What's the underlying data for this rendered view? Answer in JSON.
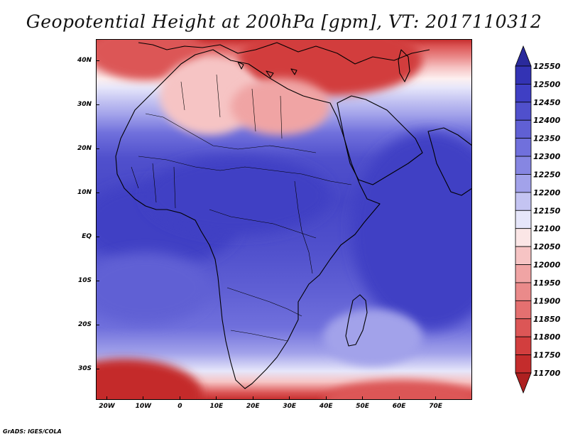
{
  "title": "Geopotential Height at 200hPa [gpm], VT: 2017110312",
  "credit": "GrADS: IGES/COLA",
  "map": {
    "lon_range": [
      -23,
      80
    ],
    "lat_range": [
      -37,
      45
    ],
    "lon_ticks": [
      {
        "value": -20,
        "label": "20W"
      },
      {
        "value": -10,
        "label": "10W"
      },
      {
        "value": 0,
        "label": "0"
      },
      {
        "value": 10,
        "label": "10E"
      },
      {
        "value": 20,
        "label": "20E"
      },
      {
        "value": 30,
        "label": "30E"
      },
      {
        "value": 40,
        "label": "40E"
      },
      {
        "value": 50,
        "label": "50E"
      },
      {
        "value": 60,
        "label": "60E"
      },
      {
        "value": 70,
        "label": "70E"
      }
    ],
    "lat_ticks": [
      {
        "value": 40,
        "label": "40N"
      },
      {
        "value": 30,
        "label": "30N"
      },
      {
        "value": 20,
        "label": "20N"
      },
      {
        "value": 10,
        "label": "10N"
      },
      {
        "value": 0,
        "label": "EQ"
      },
      {
        "value": -10,
        "label": "10S"
      },
      {
        "value": -20,
        "label": "20S"
      },
      {
        "value": -30,
        "label": "30S"
      }
    ]
  },
  "colorbar": {
    "levels": [
      "12550",
      "12500",
      "12450",
      "12400",
      "12350",
      "12300",
      "12250",
      "12200",
      "12150",
      "12100",
      "12050",
      "12000",
      "11950",
      "11900",
      "11850",
      "11800",
      "11750",
      "11700"
    ],
    "colors": [
      "#2a2a9c",
      "#3333b4",
      "#3f3fc4",
      "#5050cc",
      "#6060d4",
      "#7070dc",
      "#8686e2",
      "#a2a2ea",
      "#c4c4f2",
      "#e6e6fa",
      "#fbe6e6",
      "#f6c4c4",
      "#f0a4a4",
      "#ea8a8a",
      "#e47070",
      "#dc5656",
      "#d23e3e",
      "#c42c2c",
      "#ae2020"
    ]
  }
}
